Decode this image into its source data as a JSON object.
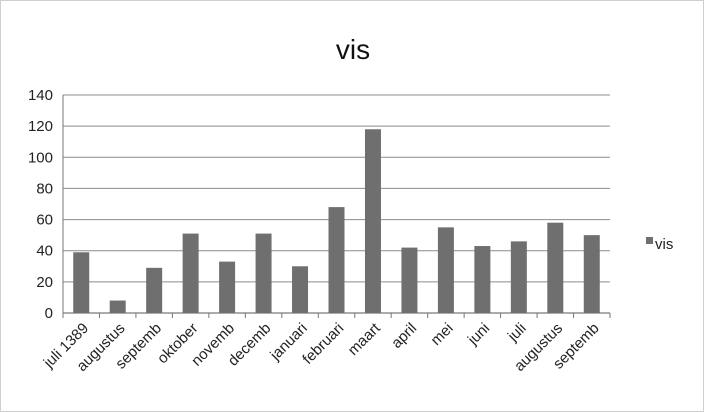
{
  "chart_data": {
    "type": "bar",
    "title": "vis",
    "categories": [
      "juli 1389",
      "augustus",
      "septemb",
      "oktober",
      "novemb",
      "decemb",
      "januari",
      "februari",
      "maart",
      "april",
      "mei",
      "juni",
      "juli",
      "augustus",
      "septemb"
    ],
    "series": [
      {
        "name": "vis",
        "values": [
          39,
          8,
          29,
          51,
          33,
          51,
          30,
          68,
          118,
          42,
          55,
          43,
          46,
          58,
          50
        ]
      }
    ],
    "xlabel": "",
    "ylabel": "",
    "ylim": [
      0,
      140
    ],
    "yticks": [
      0,
      20,
      40,
      60,
      80,
      100,
      120,
      140
    ],
    "grid": true,
    "legend": "right",
    "colors": {
      "bar": "#6f6f6f",
      "grid": "#8c8c8c",
      "axis": "#777777"
    }
  }
}
